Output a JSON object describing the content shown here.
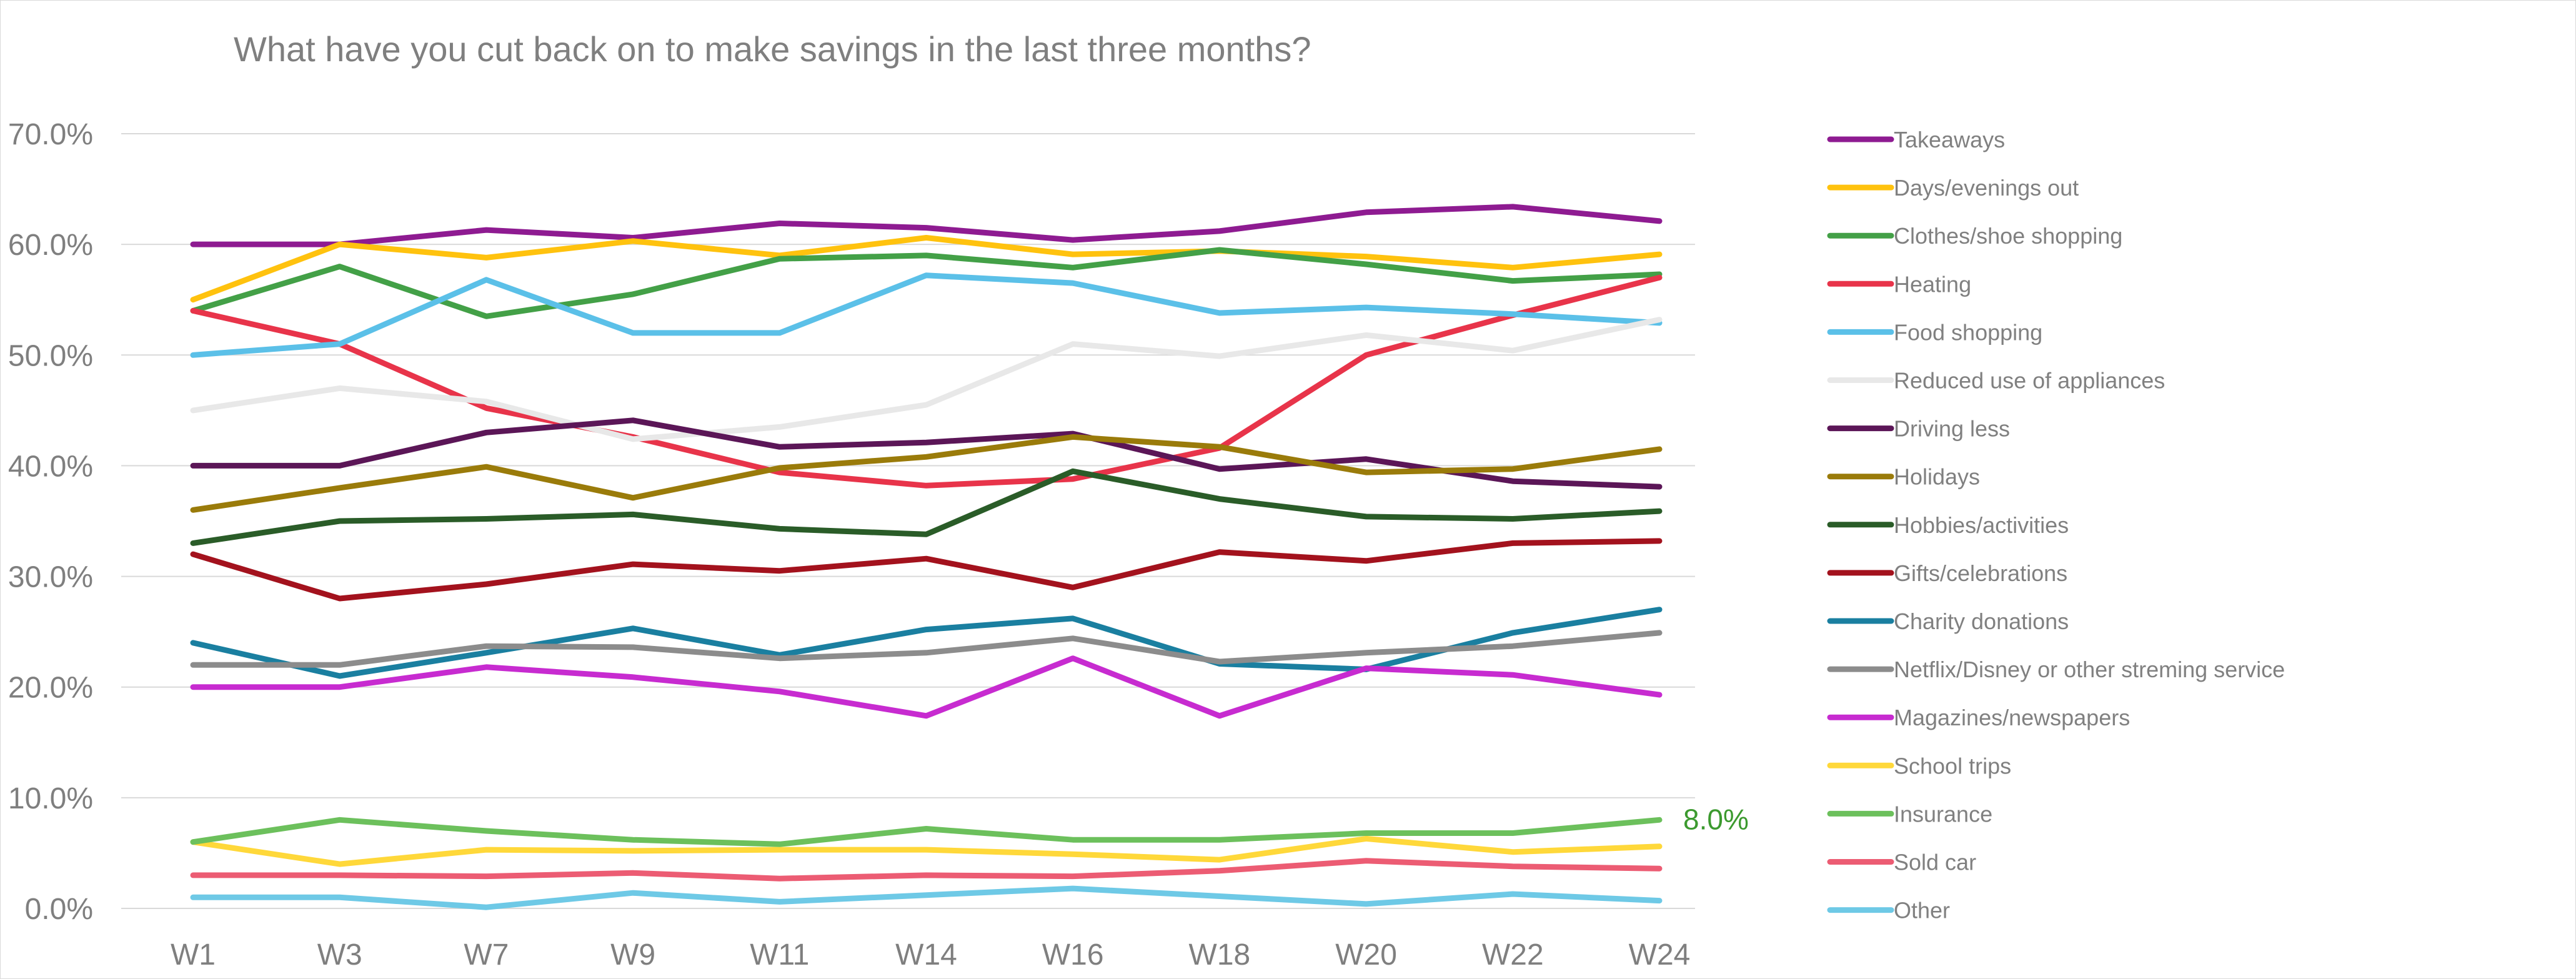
{
  "chart_data": {
    "type": "line",
    "title": "What have you cut back on to make savings in the last three months?",
    "categories": [
      "W1",
      "W3",
      "W7",
      "W9",
      "W11",
      "W14",
      "W16",
      "W18",
      "W20",
      "W22",
      "W24"
    ],
    "ylim": [
      0,
      70
    ],
    "yticks": [
      "0.0%",
      "10.0%",
      "20.0%",
      "30.0%",
      "40.0%",
      "50.0%",
      "60.0%",
      "70.0%"
    ],
    "ytick_values": [
      0,
      10,
      20,
      30,
      40,
      50,
      60,
      70
    ],
    "grid": true,
    "legend_position": "right",
    "series": [
      {
        "name": "Takeaways",
        "color": "#8e1b91",
        "values": [
          60,
          60,
          61.3,
          60.6,
          61.9,
          61.5,
          60.4,
          61.2,
          62.9,
          63.4,
          62.1
        ]
      },
      {
        "name": "Days/evenings out",
        "color": "#ffc20e",
        "values": [
          55,
          60,
          58.8,
          60.3,
          59,
          60.6,
          59.1,
          59.4,
          58.9,
          57.9,
          59.1
        ]
      },
      {
        "name": "Clothes/shoe shopping",
        "color": "#43a047",
        "values": [
          54,
          58,
          53.5,
          55.5,
          58.7,
          59,
          57.9,
          59.5,
          58.2,
          56.7,
          57.3
        ]
      },
      {
        "name": "Heating",
        "color": "#e8344a",
        "values": [
          54,
          51,
          45.2,
          42.6,
          39.4,
          38.2,
          38.8,
          41.6,
          50,
          53.6,
          57
        ]
      },
      {
        "name": "Food shopping",
        "color": "#5bc0e8",
        "values": [
          50,
          51,
          56.8,
          52,
          52,
          57.2,
          56.5,
          53.8,
          54.3,
          53.7,
          52.9
        ]
      },
      {
        "name": "Reduced use of appliances",
        "color": "#e8e8e8",
        "values": [
          45,
          47,
          45.8,
          42.4,
          43.5,
          45.5,
          51,
          49.9,
          51.8,
          50.4,
          53.2
        ]
      },
      {
        "name": "Driving less",
        "color": "#5b1657",
        "values": [
          40,
          40,
          43,
          44.1,
          41.7,
          42.1,
          42.9,
          39.7,
          40.6,
          38.6,
          38.1
        ]
      },
      {
        "name": "Holidays",
        "color": "#9a7b0a",
        "values": [
          36,
          38,
          39.9,
          37.1,
          39.8,
          40.8,
          42.6,
          41.7,
          39.4,
          39.7,
          41.5
        ]
      },
      {
        "name": "Hobbies/activities",
        "color": "#2a5c28",
        "values": [
          33,
          35,
          35.2,
          35.6,
          34.3,
          33.8,
          39.5,
          37,
          35.4,
          35.2,
          35.9
        ]
      },
      {
        "name": "Gifts/celebrations",
        "color": "#a3121d",
        "values": [
          32,
          28,
          29.3,
          31.1,
          30.5,
          31.6,
          29,
          32.2,
          31.4,
          33,
          33.2
        ]
      },
      {
        "name": "Charity donations",
        "color": "#1a7fa0",
        "values": [
          24,
          21,
          23.1,
          25.3,
          22.9,
          25.2,
          26.2,
          22.1,
          21.6,
          24.9,
          27
        ]
      },
      {
        "name": "Netflix/Disney or other streming service",
        "color": "#8c8c8c",
        "values": [
          22,
          22,
          23.7,
          23.6,
          22.6,
          23.1,
          24.4,
          22.3,
          23.1,
          23.7,
          24.9
        ]
      },
      {
        "name": "Magazines/newspapers",
        "color": "#c72bd0",
        "values": [
          20,
          20,
          21.8,
          20.9,
          19.6,
          17.4,
          22.6,
          17.4,
          21.7,
          21.1,
          19.3
        ]
      },
      {
        "name": "School trips",
        "color": "#ffd83a",
        "values": [
          6,
          4,
          5.3,
          5.2,
          5.3,
          5.3,
          4.9,
          4.4,
          6.3,
          5.1,
          5.6
        ]
      },
      {
        "name": "Insurance",
        "color": "#6cc05c",
        "values": [
          6,
          8,
          7,
          6.2,
          5.8,
          7.2,
          6.2,
          6.2,
          6.8,
          6.8,
          8
        ]
      },
      {
        "name": "Sold car",
        "color": "#ec5c73",
        "values": [
          3,
          3,
          2.9,
          3.2,
          2.7,
          3,
          2.9,
          3.4,
          4.3,
          3.8,
          3.6
        ]
      },
      {
        "name": "Other",
        "color": "#6ec9e6",
        "values": [
          1,
          1,
          0.1,
          1.4,
          0.6,
          1.2,
          1.8,
          1.1,
          0.4,
          1.3,
          0.7
        ]
      }
    ],
    "annotations": [
      {
        "text": "8.0%",
        "series": "Insurance",
        "category": "W24",
        "color": "#3c9a2f"
      }
    ]
  }
}
